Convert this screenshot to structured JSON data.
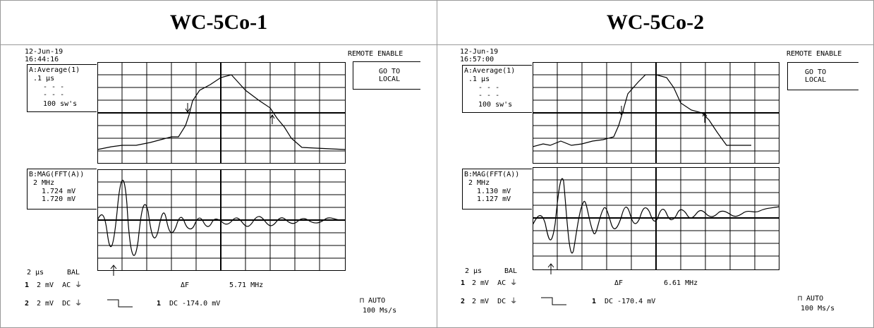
{
  "headers": [
    "WC-5Co-1",
    "WC-5Co-2"
  ],
  "panels": [
    {
      "date": "12-Jun-19",
      "time": "16:44:16",
      "remote": "REMOTE ENABLE",
      "goto_line1": "GO TO",
      "goto_line2": "LOCAL",
      "chA_line1": "A:Average(1)",
      "chA_line2": ".1 µs",
      "chA_line3": "- - -",
      "chA_line4": "- - -",
      "chA_line5": "100 sw's",
      "chB_line1": "B:MAG(FFT(A))",
      "chB_line2": "2 MHz",
      "chB_line3": "1.724 mV",
      "chB_line4": "1.720 mV",
      "timebase": "2 µs",
      "bal": "BAL",
      "ch1": "1",
      "ch1_settings": "2 mV  AC ⏚",
      "delta_label": "ΔF",
      "delta_value": "5.71 MHz",
      "ch2": "2",
      "ch2_settings": "2 mV  DC ⏚",
      "trig_ch": "1",
      "trig_value": "DC -174.0 mV",
      "acq_mode": "⊓ AUTO",
      "sample_rate": "100 Ms/s"
    },
    {
      "date": "12-Jun-19",
      "time": "16:57:00",
      "remote": "REMOTE ENABLE",
      "goto_line1": "GO TO",
      "goto_line2": "LOCAL",
      "chA_line1": "A:Average(1)",
      "chA_line2": ".1 µs",
      "chA_line3": "- - -",
      "chA_line4": "- - -",
      "chA_line5": "100 sw's",
      "chB_line1": "B:MAG(FFT(A))",
      "chB_line2": "2 MHz",
      "chB_line3": "1.130 mV",
      "chB_line4": "1.127 mV",
      "timebase": "2 µs",
      "bal": "BAL",
      "ch1": "1",
      "ch1_settings": "2 mV  AC ⏚",
      "delta_label": "ΔF",
      "delta_value": "6.61 MHz",
      "ch2": "2",
      "ch2_settings": "2 mV  DC ⏚",
      "trig_ch": "1",
      "trig_value": "DC -170.4 mV",
      "acq_mode": "⊓ AUTO",
      "sample_rate": "100 Ms/s"
    }
  ]
}
